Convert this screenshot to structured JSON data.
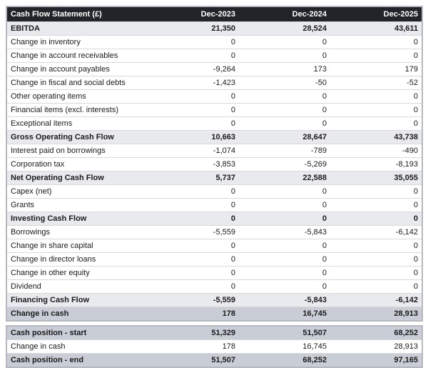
{
  "table": {
    "header": {
      "title": "Cash Flow Statement (£)",
      "columns": [
        "Dec-2023",
        "Dec-2024",
        "Dec-2025"
      ]
    },
    "colors": {
      "header_bg": "#212428",
      "header_text": "#ffffff",
      "subtotal_bg": "#e9eaee",
      "strong_bg": "#c9ced6",
      "row_line": "#d7d9dc",
      "outer_border": "#b5b9bf",
      "text": "#1b1b1b"
    },
    "sections": [
      {
        "rows": [
          {
            "label": "EBITDA",
            "values": [
              "21,350",
              "28,524",
              "43,611"
            ],
            "style": "subtotal"
          },
          {
            "label": "Change in inventory",
            "values": [
              "0",
              "0",
              "0"
            ],
            "style": "normal"
          },
          {
            "label": "Change in account receivables",
            "values": [
              "0",
              "0",
              "0"
            ],
            "style": "normal"
          },
          {
            "label": "Change in account payables",
            "values": [
              "-9,264",
              "173",
              "179"
            ],
            "style": "normal"
          },
          {
            "label": "Change in fiscal and social debts",
            "values": [
              "-1,423",
              "-50",
              "-52"
            ],
            "style": "normal"
          },
          {
            "label": "Other operating items",
            "values": [
              "0",
              "0",
              "0"
            ],
            "style": "normal"
          },
          {
            "label": "Financial items (excl. interests)",
            "values": [
              "0",
              "0",
              "0"
            ],
            "style": "normal"
          },
          {
            "label": "Exceptional items",
            "values": [
              "0",
              "0",
              "0"
            ],
            "style": "normal"
          },
          {
            "label": "Gross Operating Cash Flow",
            "values": [
              "10,663",
              "28,647",
              "43,738"
            ],
            "style": "subtotal"
          },
          {
            "label": "Interest paid on borrowings",
            "values": [
              "-1,074",
              "-789",
              "-490"
            ],
            "style": "normal"
          },
          {
            "label": "Corporation tax",
            "values": [
              "-3,853",
              "-5,269",
              "-8,193"
            ],
            "style": "normal"
          },
          {
            "label": "Net Operating Cash Flow",
            "values": [
              "5,737",
              "22,588",
              "35,055"
            ],
            "style": "subtotal"
          },
          {
            "label": "Capex (net)",
            "values": [
              "0",
              "0",
              "0"
            ],
            "style": "normal"
          },
          {
            "label": "Grants",
            "values": [
              "0",
              "0",
              "0"
            ],
            "style": "normal"
          },
          {
            "label": "Investing Cash Flow",
            "values": [
              "0",
              "0",
              "0"
            ],
            "style": "subtotal"
          },
          {
            "label": "Borrowings",
            "values": [
              "-5,559",
              "-5,843",
              "-6,142"
            ],
            "style": "normal"
          },
          {
            "label": "Change in share capital",
            "values": [
              "0",
              "0",
              "0"
            ],
            "style": "normal"
          },
          {
            "label": "Change in director loans",
            "values": [
              "0",
              "0",
              "0"
            ],
            "style": "normal"
          },
          {
            "label": "Change in other equity",
            "values": [
              "0",
              "0",
              "0"
            ],
            "style": "normal"
          },
          {
            "label": "Dividend",
            "values": [
              "0",
              "0",
              "0"
            ],
            "style": "normal"
          },
          {
            "label": "Financing Cash Flow",
            "values": [
              "-5,559",
              "-5,843",
              "-6,142"
            ],
            "style": "subtotal"
          },
          {
            "label": "Change in cash",
            "values": [
              "178",
              "16,745",
              "28,913"
            ],
            "style": "strong"
          }
        ]
      },
      {
        "rows": [
          {
            "label": "Cash position - start",
            "values": [
              "51,329",
              "51,507",
              "68,252"
            ],
            "style": "strong"
          },
          {
            "label": "Change in cash",
            "values": [
              "178",
              "16,745",
              "28,913"
            ],
            "style": "normal"
          },
          {
            "label": "Cash position - end",
            "values": [
              "51,507",
              "68,252",
              "97,165"
            ],
            "style": "strong"
          }
        ]
      }
    ]
  }
}
